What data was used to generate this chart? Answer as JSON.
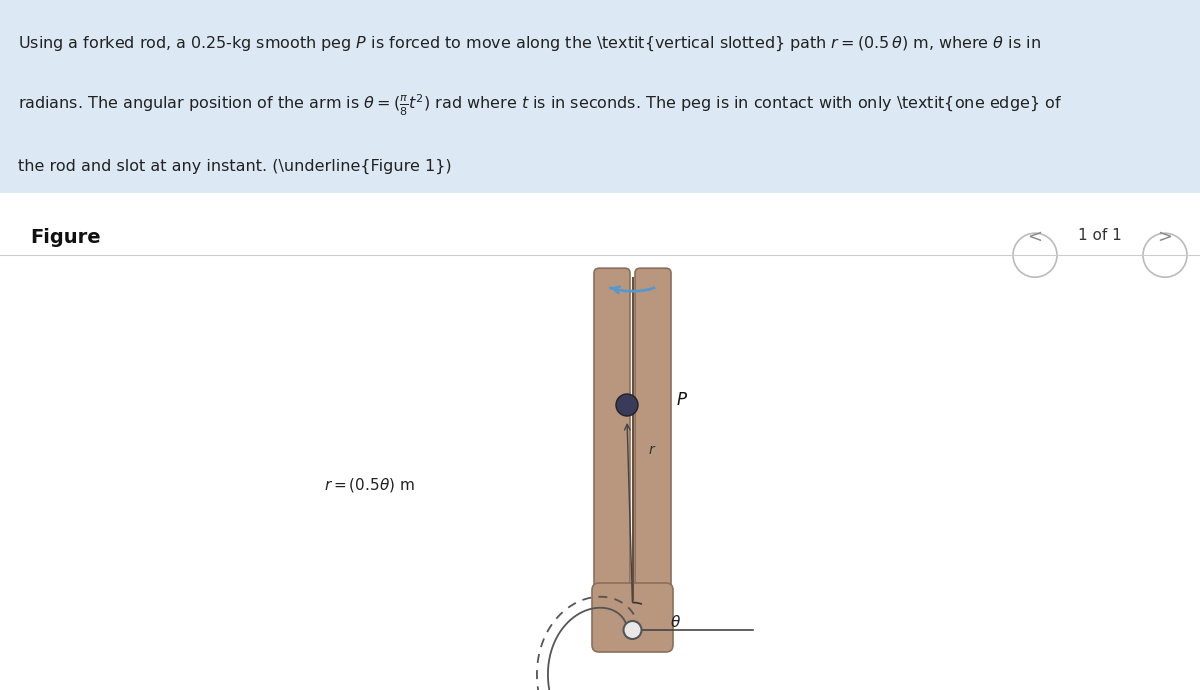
{
  "bg_color_top": "#dce9f5",
  "bg_color_bottom": "#ffffff",
  "text_block": "Using a forked rod, a 0.25-kg smooth peg $P$ is forced to move along the *vertical slotted* path $r = (0.5\\,\\theta)$ m, where $\\theta$ is in\nradians. The angular position of the arm is $\\theta = (\\frac{\\pi}{8}t^2)$ rad where $t$ is in seconds. The peg is in contact with only *one edge* of\nthe rod and slot at any instant. (Figure 1)",
  "figure_label": "Figure",
  "nav_text": "1 of 1",
  "rod_color": "#b8977e",
  "rod_dark": "#8b6f5c",
  "rod_highlight": "#d4b090",
  "spiral_color": "#555555",
  "spiral_dash": "#777777",
  "peg_color": "#4a4a6a",
  "arrow_color": "#5599cc",
  "label_r": "$r = (0.5\\theta)$ m",
  "label_P": "$P$",
  "label_r_small": "$r$",
  "label_theta": "$\\theta$"
}
